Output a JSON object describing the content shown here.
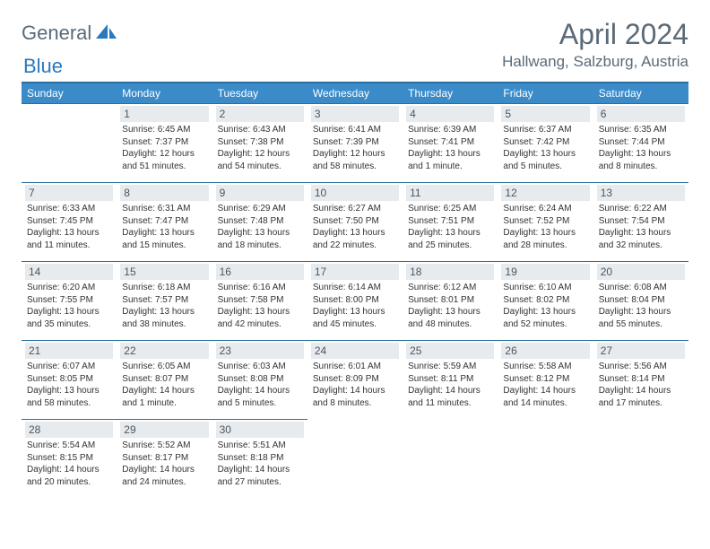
{
  "logo": {
    "part1": "General",
    "part2": "Blue"
  },
  "title": "April 2024",
  "location": "Hallwang, Salzburg, Austria",
  "colors": {
    "header_bg": "#3b8bc9",
    "header_border": "#2a6fa0",
    "daynum_bg": "#e7ebee",
    "text_muted": "#5a6a78",
    "accent": "#2a78bd"
  },
  "weekdays": [
    "Sunday",
    "Monday",
    "Tuesday",
    "Wednesday",
    "Thursday",
    "Friday",
    "Saturday"
  ],
  "weeks": [
    [
      {
        "n": "",
        "sunrise": "",
        "sunset": "",
        "daylight": ""
      },
      {
        "n": "1",
        "sunrise": "Sunrise: 6:45 AM",
        "sunset": "Sunset: 7:37 PM",
        "daylight": "Daylight: 12 hours and 51 minutes."
      },
      {
        "n": "2",
        "sunrise": "Sunrise: 6:43 AM",
        "sunset": "Sunset: 7:38 PM",
        "daylight": "Daylight: 12 hours and 54 minutes."
      },
      {
        "n": "3",
        "sunrise": "Sunrise: 6:41 AM",
        "sunset": "Sunset: 7:39 PM",
        "daylight": "Daylight: 12 hours and 58 minutes."
      },
      {
        "n": "4",
        "sunrise": "Sunrise: 6:39 AM",
        "sunset": "Sunset: 7:41 PM",
        "daylight": "Daylight: 13 hours and 1 minute."
      },
      {
        "n": "5",
        "sunrise": "Sunrise: 6:37 AM",
        "sunset": "Sunset: 7:42 PM",
        "daylight": "Daylight: 13 hours and 5 minutes."
      },
      {
        "n": "6",
        "sunrise": "Sunrise: 6:35 AM",
        "sunset": "Sunset: 7:44 PM",
        "daylight": "Daylight: 13 hours and 8 minutes."
      }
    ],
    [
      {
        "n": "7",
        "sunrise": "Sunrise: 6:33 AM",
        "sunset": "Sunset: 7:45 PM",
        "daylight": "Daylight: 13 hours and 11 minutes."
      },
      {
        "n": "8",
        "sunrise": "Sunrise: 6:31 AM",
        "sunset": "Sunset: 7:47 PM",
        "daylight": "Daylight: 13 hours and 15 minutes."
      },
      {
        "n": "9",
        "sunrise": "Sunrise: 6:29 AM",
        "sunset": "Sunset: 7:48 PM",
        "daylight": "Daylight: 13 hours and 18 minutes."
      },
      {
        "n": "10",
        "sunrise": "Sunrise: 6:27 AM",
        "sunset": "Sunset: 7:50 PM",
        "daylight": "Daylight: 13 hours and 22 minutes."
      },
      {
        "n": "11",
        "sunrise": "Sunrise: 6:25 AM",
        "sunset": "Sunset: 7:51 PM",
        "daylight": "Daylight: 13 hours and 25 minutes."
      },
      {
        "n": "12",
        "sunrise": "Sunrise: 6:24 AM",
        "sunset": "Sunset: 7:52 PM",
        "daylight": "Daylight: 13 hours and 28 minutes."
      },
      {
        "n": "13",
        "sunrise": "Sunrise: 6:22 AM",
        "sunset": "Sunset: 7:54 PM",
        "daylight": "Daylight: 13 hours and 32 minutes."
      }
    ],
    [
      {
        "n": "14",
        "sunrise": "Sunrise: 6:20 AM",
        "sunset": "Sunset: 7:55 PM",
        "daylight": "Daylight: 13 hours and 35 minutes."
      },
      {
        "n": "15",
        "sunrise": "Sunrise: 6:18 AM",
        "sunset": "Sunset: 7:57 PM",
        "daylight": "Daylight: 13 hours and 38 minutes."
      },
      {
        "n": "16",
        "sunrise": "Sunrise: 6:16 AM",
        "sunset": "Sunset: 7:58 PM",
        "daylight": "Daylight: 13 hours and 42 minutes."
      },
      {
        "n": "17",
        "sunrise": "Sunrise: 6:14 AM",
        "sunset": "Sunset: 8:00 PM",
        "daylight": "Daylight: 13 hours and 45 minutes."
      },
      {
        "n": "18",
        "sunrise": "Sunrise: 6:12 AM",
        "sunset": "Sunset: 8:01 PM",
        "daylight": "Daylight: 13 hours and 48 minutes."
      },
      {
        "n": "19",
        "sunrise": "Sunrise: 6:10 AM",
        "sunset": "Sunset: 8:02 PM",
        "daylight": "Daylight: 13 hours and 52 minutes."
      },
      {
        "n": "20",
        "sunrise": "Sunrise: 6:08 AM",
        "sunset": "Sunset: 8:04 PM",
        "daylight": "Daylight: 13 hours and 55 minutes."
      }
    ],
    [
      {
        "n": "21",
        "sunrise": "Sunrise: 6:07 AM",
        "sunset": "Sunset: 8:05 PM",
        "daylight": "Daylight: 13 hours and 58 minutes."
      },
      {
        "n": "22",
        "sunrise": "Sunrise: 6:05 AM",
        "sunset": "Sunset: 8:07 PM",
        "daylight": "Daylight: 14 hours and 1 minute."
      },
      {
        "n": "23",
        "sunrise": "Sunrise: 6:03 AM",
        "sunset": "Sunset: 8:08 PM",
        "daylight": "Daylight: 14 hours and 5 minutes."
      },
      {
        "n": "24",
        "sunrise": "Sunrise: 6:01 AM",
        "sunset": "Sunset: 8:09 PM",
        "daylight": "Daylight: 14 hours and 8 minutes."
      },
      {
        "n": "25",
        "sunrise": "Sunrise: 5:59 AM",
        "sunset": "Sunset: 8:11 PM",
        "daylight": "Daylight: 14 hours and 11 minutes."
      },
      {
        "n": "26",
        "sunrise": "Sunrise: 5:58 AM",
        "sunset": "Sunset: 8:12 PM",
        "daylight": "Daylight: 14 hours and 14 minutes."
      },
      {
        "n": "27",
        "sunrise": "Sunrise: 5:56 AM",
        "sunset": "Sunset: 8:14 PM",
        "daylight": "Daylight: 14 hours and 17 minutes."
      }
    ],
    [
      {
        "n": "28",
        "sunrise": "Sunrise: 5:54 AM",
        "sunset": "Sunset: 8:15 PM",
        "daylight": "Daylight: 14 hours and 20 minutes."
      },
      {
        "n": "29",
        "sunrise": "Sunrise: 5:52 AM",
        "sunset": "Sunset: 8:17 PM",
        "daylight": "Daylight: 14 hours and 24 minutes."
      },
      {
        "n": "30",
        "sunrise": "Sunrise: 5:51 AM",
        "sunset": "Sunset: 8:18 PM",
        "daylight": "Daylight: 14 hours and 27 minutes."
      },
      {
        "n": "",
        "sunrise": "",
        "sunset": "",
        "daylight": ""
      },
      {
        "n": "",
        "sunrise": "",
        "sunset": "",
        "daylight": ""
      },
      {
        "n": "",
        "sunrise": "",
        "sunset": "",
        "daylight": ""
      },
      {
        "n": "",
        "sunrise": "",
        "sunset": "",
        "daylight": ""
      }
    ]
  ]
}
